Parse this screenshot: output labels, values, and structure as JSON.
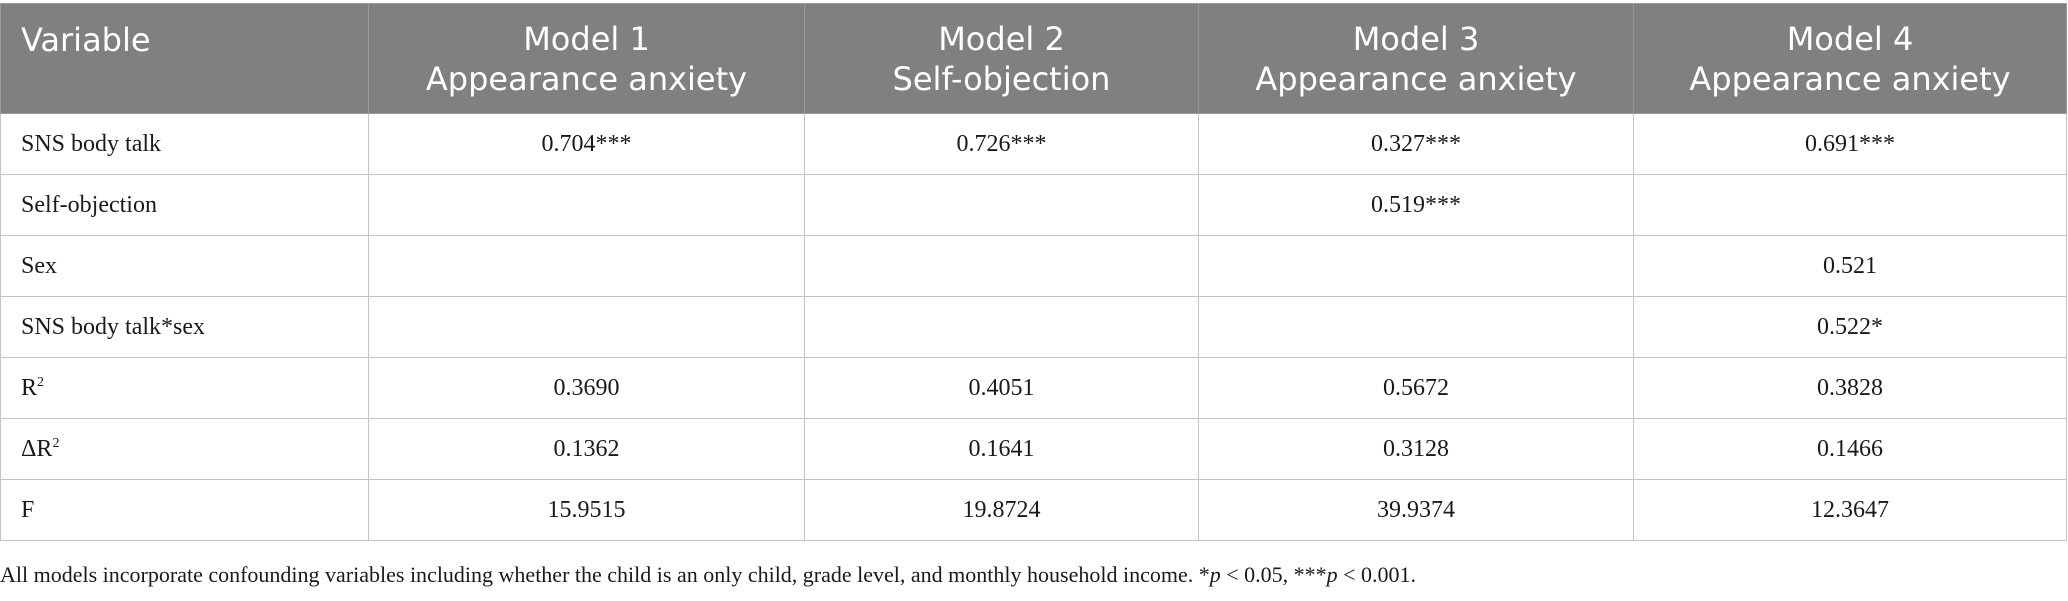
{
  "table": {
    "headers": [
      {
        "lines": [
          "Variable"
        ]
      },
      {
        "lines": [
          "Model 1",
          "Appearance anxiety"
        ]
      },
      {
        "lines": [
          "Model 2",
          "Self-objection"
        ]
      },
      {
        "lines": [
          "Model 3",
          "Appearance anxiety"
        ]
      },
      {
        "lines": [
          "Model 4",
          "Appearance anxiety"
        ]
      }
    ],
    "rows": [
      {
        "variable": "SNS body talk",
        "values": [
          "0.704***",
          "0.726***",
          "0.327***",
          "0.691***"
        ]
      },
      {
        "variable": "Self-objection",
        "values": [
          "",
          "",
          "0.519***",
          ""
        ]
      },
      {
        "variable": "Sex",
        "values": [
          "",
          "",
          "",
          "0.521"
        ]
      },
      {
        "variable": "SNS body talk*sex",
        "values": [
          "",
          "",
          "",
          "0.522*"
        ]
      },
      {
        "variable": "R",
        "superscript": "2",
        "values": [
          "0.3690",
          "0.4051",
          "0.5672",
          "0.3828"
        ]
      },
      {
        "variable": "ΔR",
        "superscript": "2",
        "values": [
          "0.1362",
          "0.1641",
          "0.3128",
          "0.1466"
        ]
      },
      {
        "variable": "F",
        "values": [
          "15.9515",
          "19.8724",
          "39.9374",
          "12.3647"
        ]
      }
    ]
  },
  "footnote": {
    "text": "All models incorporate confounding variables including whether the child is an only child, grade level, and monthly household income. *",
    "p1": "p",
    "mid": " < 0.05, ***",
    "p2": "p",
    "end": " < 0.001."
  }
}
